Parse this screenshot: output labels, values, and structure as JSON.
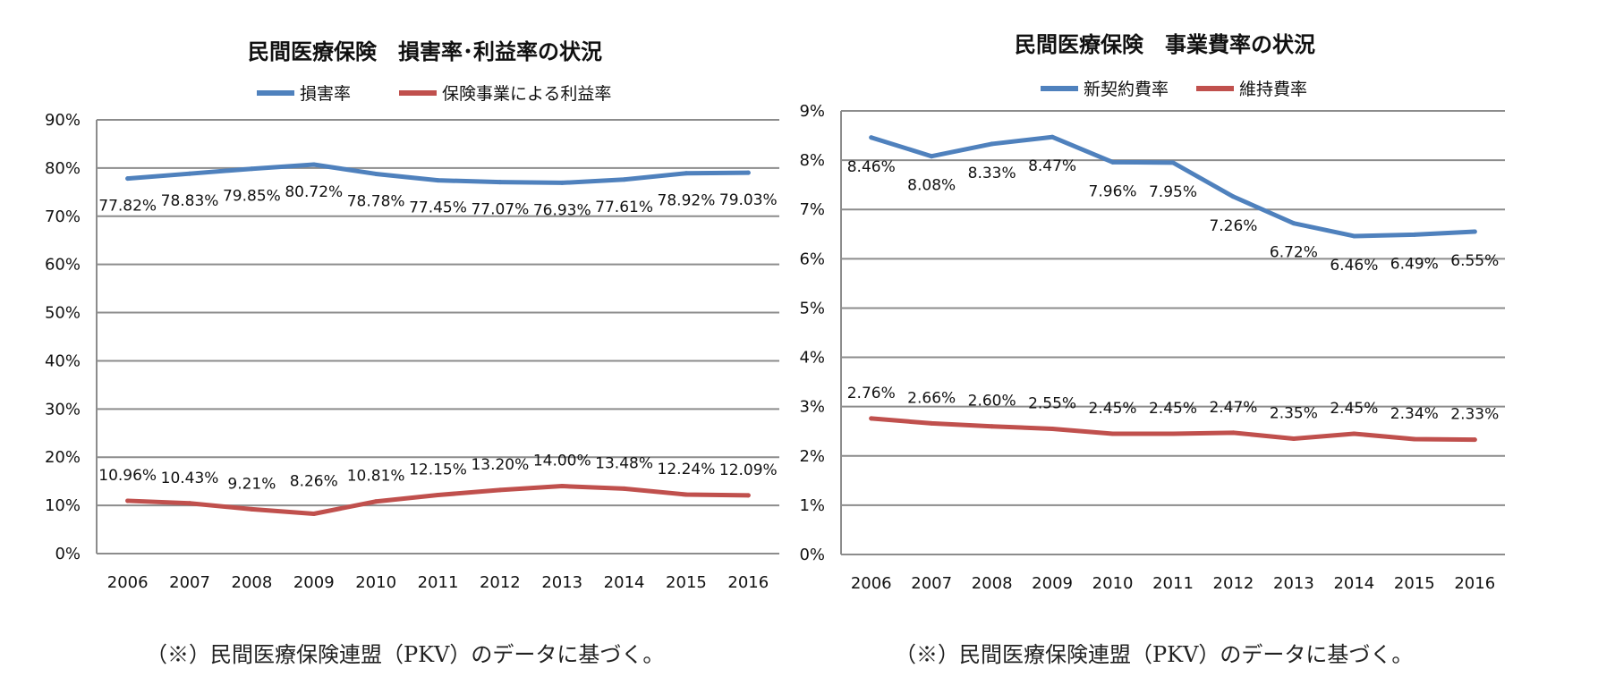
{
  "chart_data": [
    {
      "type": "line",
      "title": "民間医療保険　損害率･利益率の状況",
      "categories": [
        "2006",
        "2007",
        "2008",
        "2009",
        "2010",
        "2011",
        "2012",
        "2013",
        "2014",
        "2015",
        "2016"
      ],
      "ylim": [
        0,
        90
      ],
      "yticks": [
        0,
        10,
        20,
        30,
        40,
        50,
        60,
        70,
        80,
        90
      ],
      "ytick_labels": [
        "0%",
        "10%",
        "20%",
        "30%",
        "40%",
        "50%",
        "60%",
        "70%",
        "80%",
        "90%"
      ],
      "grid": true,
      "legend_position": "top",
      "series": [
        {
          "name": "損害率",
          "color": "#4f81bd",
          "values": [
            77.82,
            78.83,
            79.85,
            80.72,
            78.78,
            77.45,
            77.07,
            76.93,
            77.61,
            78.92,
            79.03
          ],
          "labels": [
            "77.82%",
            "78.83%",
            "79.85%",
            "80.72%",
            "78.78%",
            "77.45%",
            "77.07%",
            "76.93%",
            "77.61%",
            "78.92%",
            "79.03%"
          ]
        },
        {
          "name": "保険事業による利益率",
          "color": "#c0504d",
          "values": [
            10.96,
            10.43,
            9.21,
            8.26,
            10.81,
            12.15,
            13.2,
            14.0,
            13.48,
            12.24,
            12.09
          ],
          "labels": [
            "10.96%",
            "10.43%",
            "9.21%",
            "8.26%",
            "10.81%",
            "12.15%",
            "13.20%",
            "14.00%",
            "13.48%",
            "12.24%",
            "12.09%"
          ]
        }
      ],
      "footnote": "（※）民間医療保険連盟（PKV）のデータに基づく。"
    },
    {
      "type": "line",
      "title": "民間医療保険　事業費率の状況",
      "categories": [
        "2006",
        "2007",
        "2008",
        "2009",
        "2010",
        "2011",
        "2012",
        "2013",
        "2014",
        "2015",
        "2016"
      ],
      "ylim": [
        0,
        9
      ],
      "yticks": [
        0,
        1,
        2,
        3,
        4,
        5,
        6,
        7,
        8,
        9
      ],
      "ytick_labels": [
        "0%",
        "1%",
        "2%",
        "3%",
        "4%",
        "5%",
        "6%",
        "7%",
        "8%",
        "9%"
      ],
      "grid": true,
      "legend_position": "top",
      "series": [
        {
          "name": "新契約費率",
          "color": "#4f81bd",
          "values": [
            8.46,
            8.08,
            8.33,
            8.47,
            7.96,
            7.95,
            7.26,
            6.72,
            6.46,
            6.49,
            6.55
          ],
          "labels": [
            "8.46%",
            "8.08%",
            "8.33%",
            "8.47%",
            "7.96%",
            "7.95%",
            "7.26%",
            "6.72%",
            "6.46%",
            "6.49%",
            "6.55%"
          ]
        },
        {
          "name": "維持費率",
          "color": "#c0504d",
          "values": [
            2.76,
            2.66,
            2.6,
            2.55,
            2.45,
            2.45,
            2.47,
            2.35,
            2.45,
            2.34,
            2.33
          ],
          "labels": [
            "2.76%",
            "2.66%",
            "2.60%",
            "2.55%",
            "2.45%",
            "2.45%",
            "2.47%",
            "2.35%",
            "2.45%",
            "2.34%",
            "2.33%"
          ]
        }
      ],
      "footnote": "（※）民間医療保険連盟（PKV）のデータに基づく。"
    }
  ]
}
